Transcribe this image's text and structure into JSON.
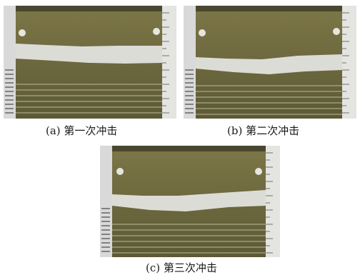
{
  "figure": {
    "panels": [
      {
        "id": "a",
        "caption": "(a) 第一次冲击",
        "band_color": "#dcdcd6"
      },
      {
        "id": "b",
        "caption": "(b) 第二次冲击",
        "band_color": "#dcdcd6"
      },
      {
        "id": "c",
        "caption": "(c) 第三次冲击",
        "band_color": "#dcdcd6"
      }
    ],
    "colors": {
      "sand_top": "#7a7448",
      "sand_bottom": "#5f5c35",
      "layer_line": "#a9a78a",
      "ruler": "#e4e4e0",
      "left_bar": "#d8d8d8",
      "frame": "#3a3a2c"
    }
  }
}
